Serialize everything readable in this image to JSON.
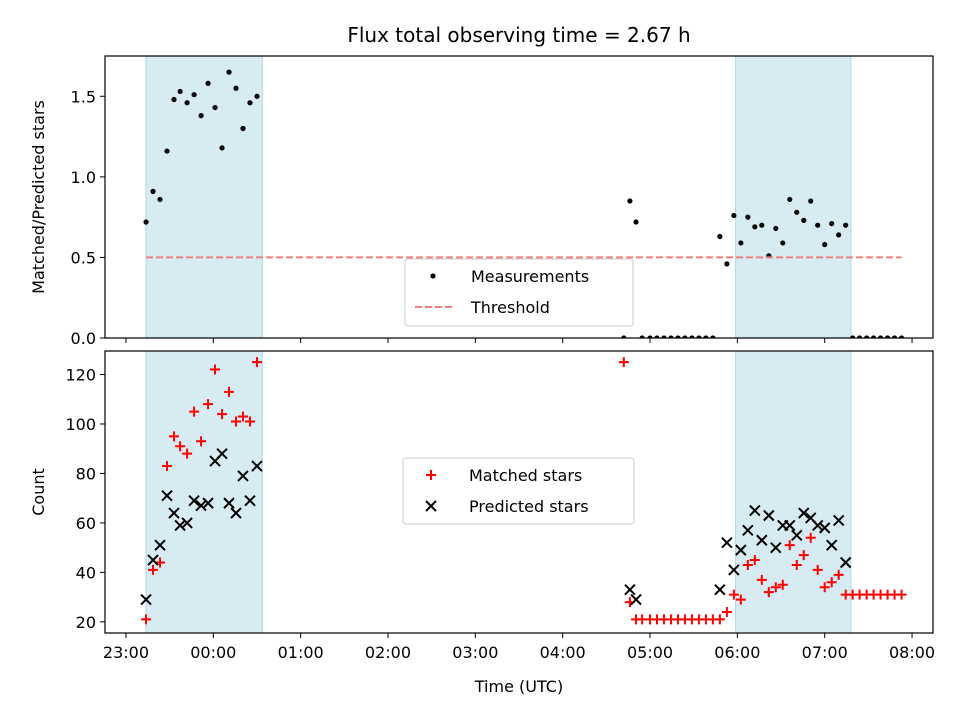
{
  "chart_data": {
    "title": "Flux total observing time = 2.67 h",
    "xlabel": "Time (UTC)",
    "x_unit": "hours (UTC, continuing past midnight)",
    "x_ticks": [
      {
        "value": 23,
        "label": "23:00"
      },
      {
        "value": 24,
        "label": "00:00"
      },
      {
        "value": 25,
        "label": "01:00"
      },
      {
        "value": 26,
        "label": "02:00"
      },
      {
        "value": 27,
        "label": "03:00"
      },
      {
        "value": 28,
        "label": "04:00"
      },
      {
        "value": 29,
        "label": "05:00"
      },
      {
        "value": 30,
        "label": "06:00"
      },
      {
        "value": 31,
        "label": "07:00"
      },
      {
        "value": 32,
        "label": "08:00"
      }
    ],
    "xlim": [
      22.76,
      32.24
    ],
    "shaded_intervals": [
      [
        23.23,
        24.56
      ],
      [
        29.98,
        31.3
      ]
    ],
    "shade_color": "#add8e6",
    "panels": [
      {
        "id": "ratio",
        "type": "scatter",
        "ylabel": "Matched/Predicted stars",
        "ylim": [
          0,
          1.75
        ],
        "y_ticks": [
          {
            "value": 0,
            "label": "0.0"
          },
          {
            "value": 0.5,
            "label": "0.5"
          },
          {
            "value": 1.0,
            "label": "1.0"
          },
          {
            "value": 1.5,
            "label": "1.5"
          }
        ],
        "legend": {
          "position": "bottom-center"
        },
        "series": [
          {
            "name": "Measurements",
            "marker": "dot",
            "color": "#000000",
            "points": [
              [
                23.23,
                0.72
              ],
              [
                23.31,
                0.91
              ],
              [
                23.39,
                0.86
              ],
              [
                23.47,
                1.16
              ],
              [
                23.55,
                1.48
              ],
              [
                23.62,
                1.53
              ],
              [
                23.7,
                1.46
              ],
              [
                23.78,
                1.51
              ],
              [
                23.86,
                1.38
              ],
              [
                23.94,
                1.58
              ],
              [
                24.02,
                1.43
              ],
              [
                24.1,
                1.18
              ],
              [
                24.18,
                1.65
              ],
              [
                24.26,
                1.55
              ],
              [
                24.34,
                1.3
              ],
              [
                24.42,
                1.46
              ],
              [
                24.5,
                1.5
              ],
              [
                28.7,
                0.0
              ],
              [
                28.77,
                0.85
              ],
              [
                28.84,
                0.72
              ],
              [
                28.91,
                0.0
              ],
              [
                29.0,
                0.0
              ],
              [
                29.08,
                0.0
              ],
              [
                29.16,
                0.0
              ],
              [
                29.24,
                0.0
              ],
              [
                29.32,
                0.0
              ],
              [
                29.4,
                0.0
              ],
              [
                29.48,
                0.0
              ],
              [
                29.56,
                0.0
              ],
              [
                29.64,
                0.0
              ],
              [
                29.72,
                0.0
              ],
              [
                29.8,
                0.63
              ],
              [
                29.88,
                0.46
              ],
              [
                29.96,
                0.76
              ],
              [
                30.04,
                0.59
              ],
              [
                30.12,
                0.75
              ],
              [
                30.2,
                0.69
              ],
              [
                30.28,
                0.7
              ],
              [
                30.36,
                0.51
              ],
              [
                30.44,
                0.68
              ],
              [
                30.52,
                0.59
              ],
              [
                30.6,
                0.86
              ],
              [
                30.68,
                0.78
              ],
              [
                30.76,
                0.73
              ],
              [
                30.84,
                0.85
              ],
              [
                30.92,
                0.7
              ],
              [
                31.0,
                0.58
              ],
              [
                31.08,
                0.71
              ],
              [
                31.16,
                0.64
              ],
              [
                31.24,
                0.7
              ],
              [
                31.32,
                0.0
              ],
              [
                31.4,
                0.0
              ],
              [
                31.48,
                0.0
              ],
              [
                31.56,
                0.0
              ],
              [
                31.64,
                0.0
              ],
              [
                31.72,
                0.0
              ],
              [
                31.8,
                0.0
              ],
              [
                31.88,
                0.0
              ]
            ]
          },
          {
            "name": "Threshold",
            "marker": "dashed-line",
            "color": "#f08080",
            "value": 0.5,
            "x_range": [
              23.23,
              31.88
            ]
          }
        ]
      },
      {
        "id": "counts",
        "type": "scatter",
        "ylabel": "Count",
        "ylim": [
          15.5,
          129.5
        ],
        "y_ticks": [
          {
            "value": 20,
            "label": "20"
          },
          {
            "value": 40,
            "label": "40"
          },
          {
            "value": 60,
            "label": "60"
          },
          {
            "value": 80,
            "label": "80"
          },
          {
            "value": 100,
            "label": "100"
          },
          {
            "value": 120,
            "label": "120"
          }
        ],
        "legend": {
          "position": "center"
        },
        "series": [
          {
            "name": "Matched stars",
            "marker": "plus",
            "color": "#ff0000",
            "points": [
              [
                23.23,
                21
              ],
              [
                23.31,
                41
              ],
              [
                23.39,
                44
              ],
              [
                23.47,
                83
              ],
              [
                23.55,
                95
              ],
              [
                23.62,
                91
              ],
              [
                23.7,
                88
              ],
              [
                23.78,
                105
              ],
              [
                23.86,
                93
              ],
              [
                23.94,
                108
              ],
              [
                24.02,
                122
              ],
              [
                24.1,
                104
              ],
              [
                24.18,
                113
              ],
              [
                24.26,
                101
              ],
              [
                24.34,
                103
              ],
              [
                24.42,
                101
              ],
              [
                24.5,
                125
              ],
              [
                28.7,
                125
              ],
              [
                28.77,
                28
              ],
              [
                28.84,
                21
              ],
              [
                28.91,
                21
              ],
              [
                29.0,
                21
              ],
              [
                29.08,
                21
              ],
              [
                29.16,
                21
              ],
              [
                29.24,
                21
              ],
              [
                29.32,
                21
              ],
              [
                29.4,
                21
              ],
              [
                29.48,
                21
              ],
              [
                29.56,
                21
              ],
              [
                29.64,
                21
              ],
              [
                29.72,
                21
              ],
              [
                29.8,
                21
              ],
              [
                29.88,
                24
              ],
              [
                29.96,
                31
              ],
              [
                30.04,
                29
              ],
              [
                30.12,
                43
              ],
              [
                30.2,
                45
              ],
              [
                30.28,
                37
              ],
              [
                30.36,
                32
              ],
              [
                30.44,
                34
              ],
              [
                30.52,
                35
              ],
              [
                30.6,
                51
              ],
              [
                30.68,
                43
              ],
              [
                30.76,
                47
              ],
              [
                30.84,
                54
              ],
              [
                30.92,
                41
              ],
              [
                31.0,
                34
              ],
              [
                31.08,
                36
              ],
              [
                31.16,
                39
              ],
              [
                31.24,
                31
              ],
              [
                31.32,
                31
              ],
              [
                31.4,
                31
              ],
              [
                31.48,
                31
              ],
              [
                31.56,
                31
              ],
              [
                31.64,
                31
              ],
              [
                31.72,
                31
              ],
              [
                31.8,
                31
              ],
              [
                31.88,
                31
              ]
            ]
          },
          {
            "name": "Predicted stars",
            "marker": "x",
            "color": "#000000",
            "points": [
              [
                23.23,
                29
              ],
              [
                23.31,
                45
              ],
              [
                23.39,
                51
              ],
              [
                23.47,
                71
              ],
              [
                23.55,
                64
              ],
              [
                23.62,
                59
              ],
              [
                23.7,
                60
              ],
              [
                23.78,
                69
              ],
              [
                23.86,
                67
              ],
              [
                23.94,
                68
              ],
              [
                24.02,
                85
              ],
              [
                24.1,
                88
              ],
              [
                24.18,
                68
              ],
              [
                24.26,
                64
              ],
              [
                24.34,
                79
              ],
              [
                24.42,
                69
              ],
              [
                24.5,
                83
              ],
              [
                28.77,
                33
              ],
              [
                28.84,
                29
              ],
              [
                29.8,
                33
              ],
              [
                29.88,
                52
              ],
              [
                29.96,
                41
              ],
              [
                30.04,
                49
              ],
              [
                30.12,
                57
              ],
              [
                30.2,
                65
              ],
              [
                30.28,
                53
              ],
              [
                30.36,
                63
              ],
              [
                30.44,
                50
              ],
              [
                30.52,
                59
              ],
              [
                30.6,
                59
              ],
              [
                30.68,
                55
              ],
              [
                30.76,
                64
              ],
              [
                30.84,
                62
              ],
              [
                30.92,
                59
              ],
              [
                31.0,
                58
              ],
              [
                31.08,
                51
              ],
              [
                31.16,
                61
              ],
              [
                31.24,
                44
              ]
            ]
          }
        ]
      }
    ]
  }
}
